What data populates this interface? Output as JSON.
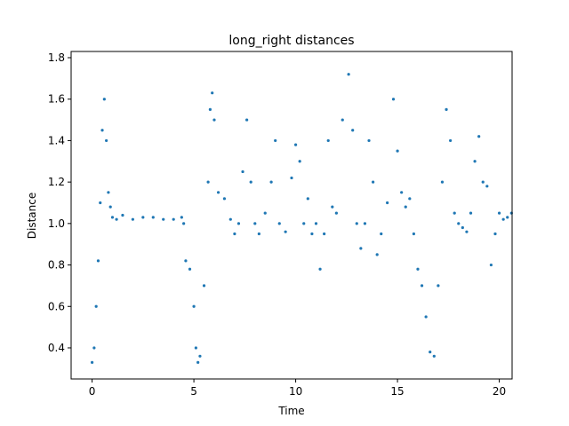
{
  "chart_data": {
    "type": "scatter",
    "title": "long_right distances",
    "xlabel": "Time",
    "ylabel": "Distance",
    "xlim": [
      -1.03,
      20.63
    ],
    "ylim": [
      0.25,
      1.83
    ],
    "xticks": [
      0,
      5,
      10,
      15,
      20
    ],
    "xtick_labels": [
      "0",
      "5",
      "10",
      "15",
      "20"
    ],
    "yticks": [
      0.4,
      0.6,
      0.8,
      1.0,
      1.2,
      1.4,
      1.6,
      1.8
    ],
    "ytick_labels": [
      "0.4",
      "0.6",
      "0.8",
      "1.0",
      "1.2",
      "1.4",
      "1.6",
      "1.8"
    ],
    "grid": false,
    "marker_color": "#1f77b4",
    "series": [
      {
        "x": [
          0.0,
          0.1,
          0.2,
          0.3,
          0.4,
          0.5,
          0.6,
          0.7,
          0.8,
          0.9,
          1.0,
          1.2,
          1.5,
          2.0,
          2.5,
          3.0,
          3.5,
          4.0,
          4.4,
          4.5,
          4.6,
          4.8,
          5.0,
          5.1,
          5.2,
          5.3,
          5.5,
          5.7,
          5.8,
          5.9,
          6.0,
          6.2,
          6.5,
          6.8,
          7.0,
          7.2,
          7.4,
          7.6,
          7.8,
          8.0,
          8.2,
          8.5,
          8.8,
          9.0,
          9.2,
          9.5,
          9.8,
          10.0,
          10.2,
          10.4,
          10.6,
          10.8,
          11.0,
          11.2,
          11.4,
          11.6,
          11.8,
          12.0,
          12.3,
          12.6,
          12.8,
          13.0,
          13.2,
          13.4,
          13.6,
          13.8,
          14.0,
          14.2,
          14.5,
          14.8,
          15.0,
          15.2,
          15.4,
          15.6,
          15.8,
          16.0,
          16.2,
          16.4,
          16.6,
          16.8,
          17.0,
          17.2,
          17.4,
          17.6,
          17.8,
          18.0,
          18.2,
          18.4,
          18.6,
          18.8,
          19.0,
          19.2,
          19.4,
          19.6,
          19.8,
          20.0,
          20.2,
          20.4,
          20.6
        ],
        "y": [
          0.33,
          0.4,
          0.6,
          0.82,
          1.1,
          1.45,
          1.6,
          1.4,
          1.15,
          1.08,
          1.03,
          1.02,
          1.04,
          1.02,
          1.03,
          1.03,
          1.02,
          1.02,
          1.03,
          1.0,
          0.82,
          0.78,
          0.6,
          0.4,
          0.33,
          0.36,
          0.7,
          1.2,
          1.55,
          1.63,
          1.5,
          1.15,
          1.12,
          1.02,
          0.95,
          1.0,
          1.25,
          1.5,
          1.2,
          1.0,
          0.95,
          1.05,
          1.2,
          1.4,
          1.0,
          0.96,
          1.22,
          1.38,
          1.3,
          1.0,
          1.12,
          0.95,
          1.0,
          0.78,
          0.95,
          1.4,
          1.08,
          1.05,
          1.5,
          1.72,
          1.45,
          1.0,
          0.88,
          1.0,
          1.4,
          1.2,
          0.85,
          0.95,
          1.1,
          1.6,
          1.35,
          1.15,
          1.08,
          1.12,
          0.95,
          0.78,
          0.7,
          0.55,
          0.38,
          0.36,
          0.7,
          1.2,
          1.55,
          1.4,
          1.05,
          1.0,
          0.98,
          0.96,
          1.05,
          1.3,
          1.42,
          1.2,
          1.18,
          0.8,
          0.95,
          1.05,
          1.02,
          1.03,
          1.05
        ]
      }
    ]
  }
}
